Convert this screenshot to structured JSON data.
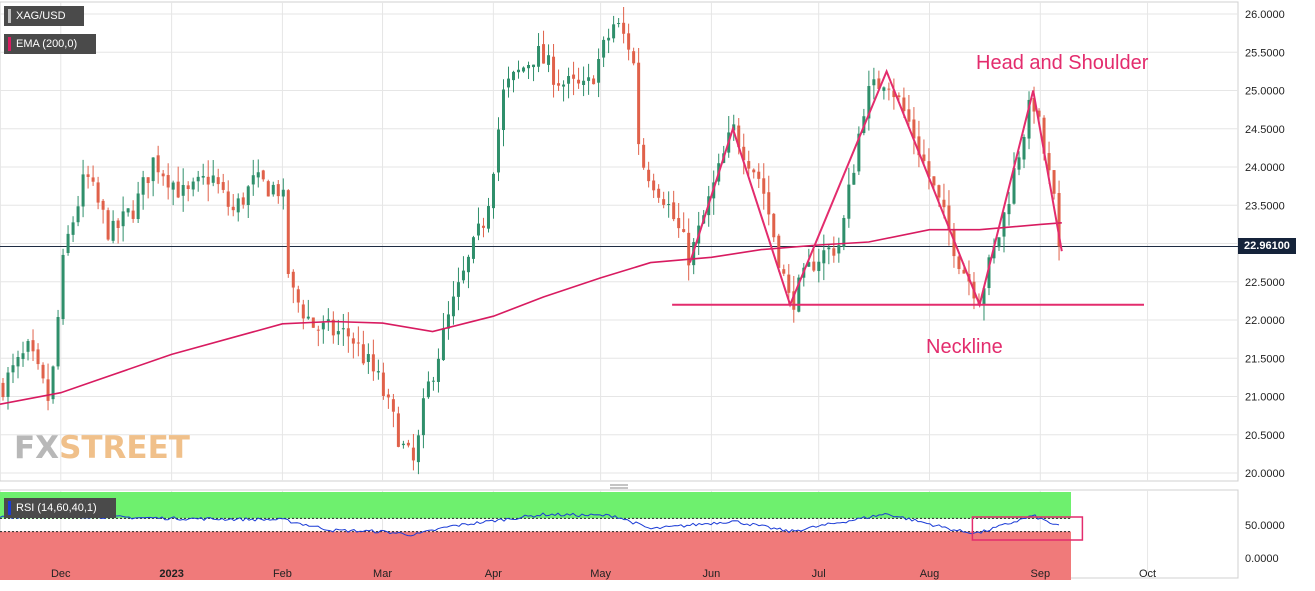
{
  "legend": {
    "symbol": "XAG/USD",
    "ema_label": "EMA (200,0)",
    "rsi_label": "RSI (14,60,40,1)"
  },
  "watermark": {
    "part1": "FX",
    "part2": "STREET"
  },
  "current_price": "22.96100",
  "annotations": {
    "pattern": "Head and Shoulder",
    "neckline": "Neckline"
  },
  "colors": {
    "bull": "#2f8f6b",
    "bear": "#e0614a",
    "ema": "#d81b60",
    "pattern_line": "#e32c6d",
    "rsi_line": "#1a3bd6",
    "rsi_overbought_fill": "#6ef06e",
    "rsi_oversold_fill": "#f07a7a",
    "price_line": "#1f2d44"
  },
  "chart_data": [
    {
      "type": "candlestick",
      "title": "XAG/USD",
      "y_ticks": [
        "26.0000",
        "25.5000",
        "25.0000",
        "24.5000",
        "24.0000",
        "23.5000",
        "23.0000",
        "22.5000",
        "22.0000",
        "21.5000",
        "21.0000",
        "20.5000",
        "20.0000"
      ],
      "ylim": [
        19.9,
        26.1
      ],
      "x_ticks": [
        "Dec",
        "2023",
        "Feb",
        "Mar",
        "Apr",
        "May",
        "Jun",
        "Jul",
        "Aug",
        "Sep",
        "Oct"
      ],
      "grid": true,
      "close_path": [
        [
          "2022-11-14",
          21.1
        ],
        [
          "2022-11-22",
          21.6
        ],
        [
          "2022-11-28",
          20.9
        ],
        [
          "2022-12-02",
          22.9
        ],
        [
          "2022-12-08",
          23.9
        ],
        [
          "2022-12-15",
          23.1
        ],
        [
          "2022-12-22",
          23.5
        ],
        [
          "2022-12-27",
          24.1
        ],
        [
          "2023-01-05",
          23.6
        ],
        [
          "2023-01-12",
          23.9
        ],
        [
          "2023-01-18",
          23.4
        ],
        [
          "2023-01-24",
          23.8
        ],
        [
          "2023-02-01",
          23.7
        ],
        [
          "2023-02-03",
          22.4
        ],
        [
          "2023-02-10",
          21.9
        ],
        [
          "2023-02-20",
          21.8
        ],
        [
          "2023-02-28",
          21.2
        ],
        [
          "2023-03-07",
          20.3
        ],
        [
          "2023-03-10",
          20.1
        ],
        [
          "2023-03-13",
          21.0
        ],
        [
          "2023-03-20",
          22.1
        ],
        [
          "2023-03-30",
          23.4
        ],
        [
          "2023-04-04",
          25.0
        ],
        [
          "2023-04-13",
          25.5
        ],
        [
          "2023-04-20",
          25.1
        ],
        [
          "2023-04-27",
          25.0
        ],
        [
          "2023-05-05",
          25.9
        ],
        [
          "2023-05-10",
          25.5
        ],
        [
          "2023-05-12",
          24.1
        ],
        [
          "2023-05-19",
          23.6
        ],
        [
          "2023-05-26",
          22.8
        ],
        [
          "2023-06-07",
          24.5
        ],
        [
          "2023-06-15",
          23.8
        ],
        [
          "2023-06-23",
          22.2
        ],
        [
          "2023-06-30",
          22.8
        ],
        [
          "2023-07-07",
          23.0
        ],
        [
          "2023-07-14",
          24.9
        ],
        [
          "2023-07-20",
          25.2
        ],
        [
          "2023-07-27",
          24.5
        ],
        [
          "2023-08-03",
          23.6
        ],
        [
          "2023-08-10",
          22.7
        ],
        [
          "2023-08-15",
          22.3
        ],
        [
          "2023-08-21",
          23.2
        ],
        [
          "2023-08-28",
          24.6
        ],
        [
          "2023-08-30",
          24.9
        ],
        [
          "2023-09-05",
          23.5
        ],
        [
          "2023-09-07",
          22.96
        ]
      ],
      "ema_200": [
        [
          "2022-11-14",
          20.9
        ],
        [
          "2022-12-01",
          21.05
        ],
        [
          "2023-01-01",
          21.55
        ],
        [
          "2023-02-01",
          21.95
        ],
        [
          "2023-02-15",
          21.98
        ],
        [
          "2023-03-01",
          21.96
        ],
        [
          "2023-03-15",
          21.85
        ],
        [
          "2023-04-01",
          22.05
        ],
        [
          "2023-04-15",
          22.3
        ],
        [
          "2023-05-01",
          22.55
        ],
        [
          "2023-05-15",
          22.75
        ],
        [
          "2023-06-01",
          22.82
        ],
        [
          "2023-06-15",
          22.92
        ],
        [
          "2023-07-01",
          22.98
        ],
        [
          "2023-07-15",
          23.02
        ],
        [
          "2023-08-01",
          23.18
        ],
        [
          "2023-08-15",
          23.18
        ],
        [
          "2023-09-01",
          23.25
        ],
        [
          "2023-09-07",
          23.27
        ]
      ],
      "last_price": 22.961,
      "pattern_polyline": [
        [
          "2023-05-26",
          22.75
        ],
        [
          "2023-06-07",
          24.5
        ],
        [
          "2023-06-23",
          22.2
        ],
        [
          "2023-07-20",
          25.25
        ],
        [
          "2023-08-15",
          22.2
        ],
        [
          "2023-08-30",
          25.0
        ],
        [
          "2023-09-07",
          22.9
        ]
      ],
      "neckline": {
        "value": 22.2,
        "from": "2023-05-21",
        "to": "2023-09-30"
      },
      "annotations": [
        "Head and Shoulder",
        "Neckline"
      ]
    },
    {
      "type": "line",
      "title": "RSI (14,60,40,1)",
      "y_ticks": [
        "50.0000",
        "0.0000"
      ],
      "ylim": [
        0,
        100
      ],
      "overbought": 60,
      "oversold": 40,
      "values": [
        [
          "2022-11-14",
          62
        ],
        [
          "2022-12-01",
          64
        ],
        [
          "2023-01-01",
          60
        ],
        [
          "2023-02-01",
          58
        ],
        [
          "2023-02-15",
          42
        ],
        [
          "2023-03-01",
          40
        ],
        [
          "2023-03-10",
          35
        ],
        [
          "2023-03-20",
          48
        ],
        [
          "2023-04-15",
          66
        ],
        [
          "2023-05-05",
          64
        ],
        [
          "2023-05-15",
          44
        ],
        [
          "2023-06-07",
          56
        ],
        [
          "2023-06-23",
          40
        ],
        [
          "2023-07-20",
          67
        ],
        [
          "2023-08-10",
          40
        ],
        [
          "2023-08-15",
          38
        ],
        [
          "2023-08-30",
          64
        ],
        [
          "2023-09-07",
          46
        ]
      ]
    }
  ]
}
